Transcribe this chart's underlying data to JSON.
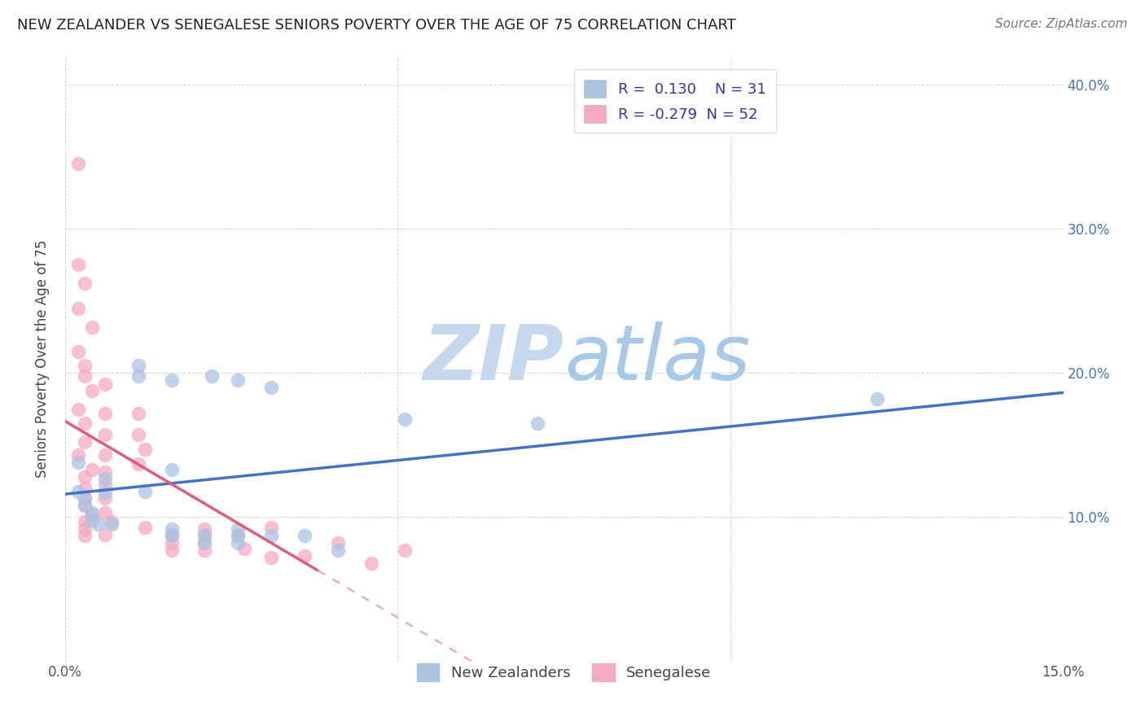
{
  "title": "NEW ZEALANDER VS SENEGALESE SENIORS POVERTY OVER THE AGE OF 75 CORRELATION CHART",
  "source": "Source: ZipAtlas.com",
  "ylabel": "Seniors Poverty Over the Age of 75",
  "xlim": [
    0.0,
    0.15
  ],
  "ylim": [
    0.0,
    0.42
  ],
  "xticks": [
    0.0,
    0.05,
    0.1,
    0.15
  ],
  "xtick_labels": [
    "0.0%",
    "",
    "",
    "15.0%"
  ],
  "yticks": [
    0.0,
    0.1,
    0.2,
    0.3,
    0.4
  ],
  "ytick_labels_right": [
    "",
    "10.0%",
    "20.0%",
    "30.0%",
    "40.0%"
  ],
  "nz_R": 0.13,
  "nz_N": 31,
  "sen_R": -0.279,
  "sen_N": 52,
  "nz_color": "#aac4e2",
  "sen_color": "#f5aabf",
  "nz_line_color": "#4472c4",
  "sen_line_color": "#e05c7c",
  "sen_line_dash_color": "#f0a0b8",
  "background_color": "#ffffff",
  "grid_color": "#c8c8c8",
  "watermark_zip_color": "#c5d8ee",
  "watermark_atlas_color": "#a8c8e8",
  "legend_color": "#3333aa",
  "nz_scatter": [
    [
      0.002,
      0.345
    ],
    [
      0.002,
      0.275
    ],
    [
      0.003,
      0.262
    ],
    [
      0.002,
      0.245
    ],
    [
      0.004,
      0.232
    ],
    [
      0.002,
      0.215
    ],
    [
      0.003,
      0.205
    ],
    [
      0.003,
      0.198
    ],
    [
      0.004,
      0.188
    ],
    [
      0.002,
      0.175
    ],
    [
      0.003,
      0.165
    ],
    [
      0.003,
      0.152
    ],
    [
      0.002,
      0.143
    ],
    [
      0.004,
      0.133
    ],
    [
      0.003,
      0.128
    ],
    [
      0.003,
      0.12
    ],
    [
      0.003,
      0.113
    ],
    [
      0.003,
      0.108
    ],
    [
      0.004,
      0.102
    ],
    [
      0.003,
      0.097
    ],
    [
      0.003,
      0.092
    ],
    [
      0.003,
      0.087
    ],
    [
      0.006,
      0.192
    ],
    [
      0.006,
      0.172
    ],
    [
      0.006,
      0.157
    ],
    [
      0.006,
      0.143
    ],
    [
      0.006,
      0.131
    ],
    [
      0.006,
      0.122
    ],
    [
      0.006,
      0.113
    ],
    [
      0.006,
      0.103
    ],
    [
      0.007,
      0.097
    ],
    [
      0.006,
      0.088
    ],
    [
      0.011,
      0.172
    ],
    [
      0.011,
      0.157
    ],
    [
      0.012,
      0.147
    ],
    [
      0.011,
      0.137
    ],
    [
      0.012,
      0.093
    ],
    [
      0.016,
      0.088
    ],
    [
      0.016,
      0.082
    ],
    [
      0.016,
      0.077
    ],
    [
      0.021,
      0.092
    ],
    [
      0.021,
      0.087
    ],
    [
      0.021,
      0.082
    ],
    [
      0.021,
      0.077
    ],
    [
      0.026,
      0.087
    ],
    [
      0.027,
      0.078
    ],
    [
      0.031,
      0.093
    ],
    [
      0.031,
      0.072
    ],
    [
      0.036,
      0.073
    ],
    [
      0.041,
      0.082
    ],
    [
      0.046,
      0.068
    ],
    [
      0.051,
      0.077
    ]
  ],
  "nz_scatter_blue": [
    [
      0.002,
      0.138
    ],
    [
      0.011,
      0.198
    ],
    [
      0.011,
      0.205
    ],
    [
      0.016,
      0.195
    ],
    [
      0.022,
      0.198
    ],
    [
      0.026,
      0.195
    ],
    [
      0.031,
      0.19
    ],
    [
      0.051,
      0.168
    ],
    [
      0.071,
      0.165
    ],
    [
      0.002,
      0.118
    ],
    [
      0.003,
      0.113
    ],
    [
      0.003,
      0.108
    ],
    [
      0.004,
      0.103
    ],
    [
      0.004,
      0.098
    ],
    [
      0.005,
      0.095
    ],
    [
      0.006,
      0.117
    ],
    [
      0.006,
      0.127
    ],
    [
      0.007,
      0.095
    ],
    [
      0.012,
      0.118
    ],
    [
      0.016,
      0.133
    ],
    [
      0.016,
      0.092
    ],
    [
      0.016,
      0.087
    ],
    [
      0.021,
      0.088
    ],
    [
      0.021,
      0.082
    ],
    [
      0.026,
      0.092
    ],
    [
      0.026,
      0.087
    ],
    [
      0.026,
      0.082
    ],
    [
      0.031,
      0.087
    ],
    [
      0.036,
      0.087
    ],
    [
      0.041,
      0.077
    ],
    [
      0.122,
      0.182
    ]
  ],
  "sen_line_solid_end": 0.038,
  "sen_line_dash_start": 0.038
}
